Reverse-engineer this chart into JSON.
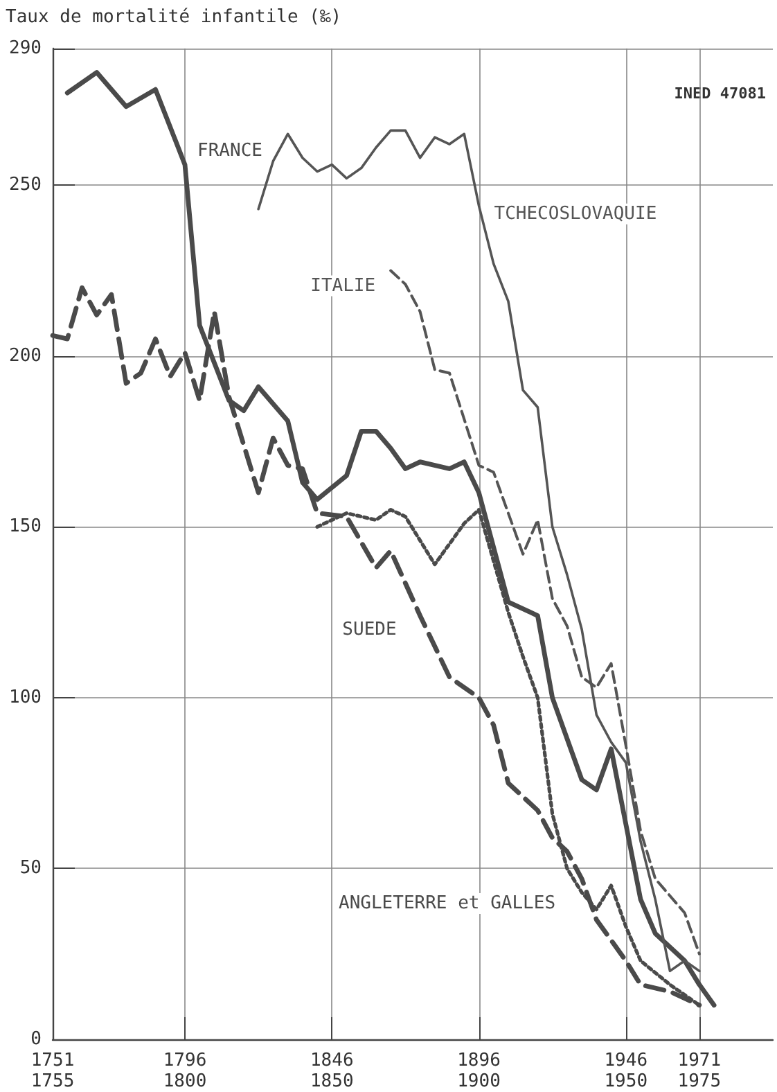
{
  "chart_data": {
    "type": "line",
    "ylabel": "Taux de mortalité infantile (‰)",
    "annotations": [
      "INED 47081"
    ],
    "categories": [
      "1751\n1755",
      null,
      null,
      null,
      null,
      null,
      null,
      null,
      null,
      "1796\n1800",
      null,
      null,
      null,
      null,
      null,
      null,
      null,
      null,
      null,
      "1846\n1850",
      null,
      null,
      null,
      null,
      null,
      null,
      null,
      null,
      null,
      "1896\n1900",
      null,
      null,
      null,
      null,
      null,
      null,
      null,
      null,
      null,
      "1946\n1950",
      null,
      null,
      null,
      null,
      "1971\n1975",
      null,
      null,
      null,
      null,
      null
    ],
    "ylim": [
      0,
      290
    ],
    "yticks": [
      0,
      50,
      100,
      150,
      200,
      250,
      290
    ],
    "grid": true,
    "legend": false,
    "marker": "none",
    "series": [
      {
        "name": "FRANCE",
        "color": "#4a4a4a",
        "line_style": "solid",
        "values": [
          null,
          277,
          null,
          283,
          null,
          273,
          null,
          278,
          null,
          256,
          209,
          null,
          187,
          184,
          191,
          null,
          181,
          163,
          158,
          null,
          165,
          178,
          178,
          173,
          167,
          169,
          null,
          167,
          169,
          160,
          null,
          128,
          null,
          124,
          100,
          null,
          76,
          73,
          85,
          63,
          41,
          31,
          null,
          23,
          16,
          10,
          null,
          null,
          null,
          null
        ]
      },
      {
        "name": "TCHECOSLOVAQUIE",
        "color": "#555555",
        "line_style": "solid",
        "values": [
          null,
          null,
          null,
          null,
          null,
          null,
          null,
          null,
          null,
          null,
          null,
          null,
          null,
          null,
          243,
          257,
          265,
          258,
          254,
          256,
          252,
          255,
          261,
          266,
          266,
          258,
          264,
          262,
          265,
          244,
          227,
          216,
          190,
          185,
          150,
          136,
          120,
          95,
          87,
          81,
          58,
          41,
          20,
          23,
          20,
          null,
          null,
          null,
          null,
          null
        ]
      },
      {
        "name": "ITALIE",
        "color": "#555555",
        "line_style": "dashed",
        "values": [
          null,
          null,
          null,
          null,
          null,
          null,
          null,
          null,
          null,
          null,
          null,
          null,
          null,
          null,
          null,
          null,
          null,
          null,
          null,
          null,
          null,
          null,
          null,
          225,
          221,
          213,
          196,
          195,
          null,
          168,
          166,
          null,
          142,
          152,
          129,
          121,
          106,
          103,
          110,
          86,
          61,
          47,
          null,
          37,
          25,
          null,
          null,
          null,
          null,
          null
        ]
      },
      {
        "name": "SUEDE",
        "color": "#4a4a4a",
        "line_style": "dashed",
        "values": [
          206,
          205,
          220,
          212,
          218,
          192,
          195,
          205,
          194,
          201,
          187,
          213,
          188,
          null,
          160,
          176,
          168,
          167,
          154,
          null,
          153,
          null,
          138,
          143,
          null,
          124,
          null,
          106,
          null,
          100,
          92,
          75,
          null,
          67,
          59,
          55,
          47,
          35,
          null,
          23,
          16,
          null,
          14,
          null,
          10,
          null,
          null,
          null,
          null,
          null
        ]
      },
      {
        "name": "ANGLETERRE et GALLES",
        "color": "#4a4a4a",
        "line_style": "dotted",
        "values": [
          null,
          null,
          null,
          null,
          null,
          null,
          null,
          null,
          null,
          null,
          null,
          null,
          null,
          null,
          null,
          null,
          null,
          null,
          150,
          null,
          154,
          null,
          152,
          155,
          153,
          null,
          139,
          null,
          151,
          155,
          null,
          125,
          112,
          100,
          66,
          50,
          43,
          38,
          45,
          33,
          23,
          null,
          16,
          null,
          10,
          null,
          null,
          null,
          null,
          null
        ]
      }
    ]
  }
}
